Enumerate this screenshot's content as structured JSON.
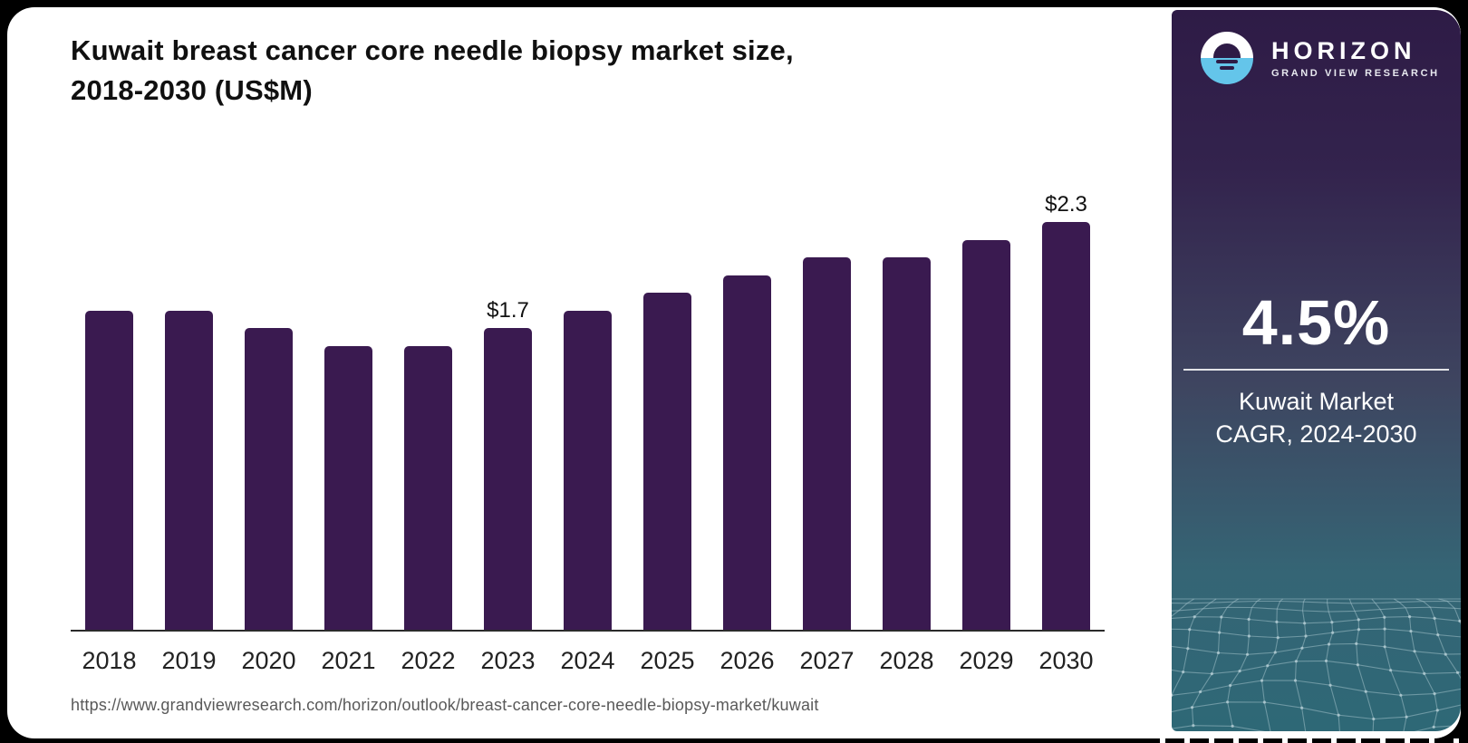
{
  "card": {
    "title_line1": "Kuwait breast cancer core needle biopsy market size,",
    "title_line2": "2018-2030 (US$M)",
    "source_url": "https://www.grandviewresearch.com/horizon/outlook/breast-cancer-core-needle-biopsy-market/kuwait"
  },
  "chart_data": {
    "type": "bar",
    "title": "Kuwait breast cancer core needle biopsy market size, 2018-2030 (US$M)",
    "unit": "US$M",
    "categories": [
      "2018",
      "2019",
      "2020",
      "2021",
      "2022",
      "2023",
      "2024",
      "2025",
      "2026",
      "2027",
      "2028",
      "2029",
      "2030"
    ],
    "values": [
      1.8,
      1.8,
      1.7,
      1.6,
      1.6,
      1.7,
      1.8,
      1.9,
      2.0,
      2.1,
      2.1,
      2.2,
      2.3
    ],
    "point_labels": {
      "2023": "$1.7",
      "2030": "$2.3"
    },
    "bar_color": "#3A1A50",
    "ylim": [
      0,
      2.5
    ],
    "grid": false,
    "legend": "none",
    "xlabel": "",
    "ylabel": "US$M"
  },
  "sidebar": {
    "logo": {
      "icon": "horizon-sun-icon",
      "brand": "HORIZON",
      "sub_brand": "GRAND VIEW RESEARCH"
    },
    "stat_value": "4.5%",
    "stat_label_line1": "Kuwait Market",
    "stat_label_line2": "CAGR, 2024-2030",
    "colors": {
      "panel_top": "#2E1B46",
      "panel_bottom": "#2E6876",
      "accent_blue": "#64C5EA",
      "bar_purple": "#3A1A50"
    }
  }
}
